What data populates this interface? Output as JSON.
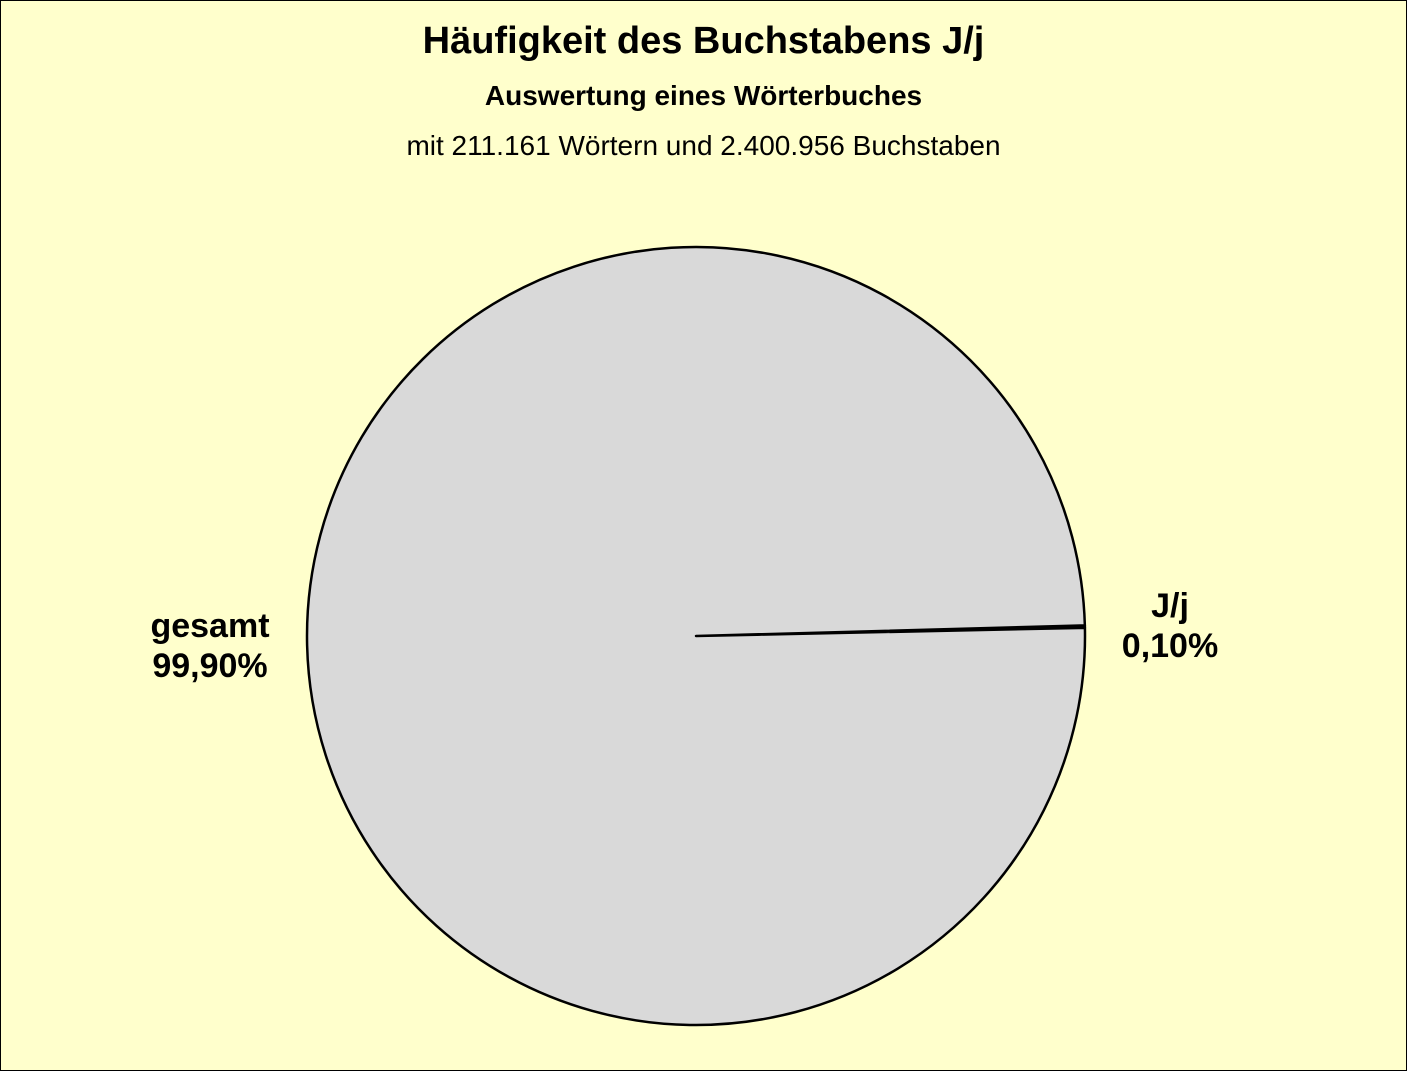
{
  "chart_data": {
    "type": "pie",
    "title": "Häufigkeit des Buchstabens J/j",
    "subtitle": "Auswertung eines Wörterbuches",
    "subtitle2": "mit 211.161 Wörtern und 2.400.956 Buchstaben",
    "slices": [
      {
        "label": "J/j",
        "value": 0.1,
        "value_label": "0,10%",
        "color": "#D9D9D9"
      },
      {
        "label": "gesamt",
        "value": 99.9,
        "value_label": "99,90%",
        "color": "#D9D9D9"
      }
    ],
    "background": "#FFFFCC"
  }
}
